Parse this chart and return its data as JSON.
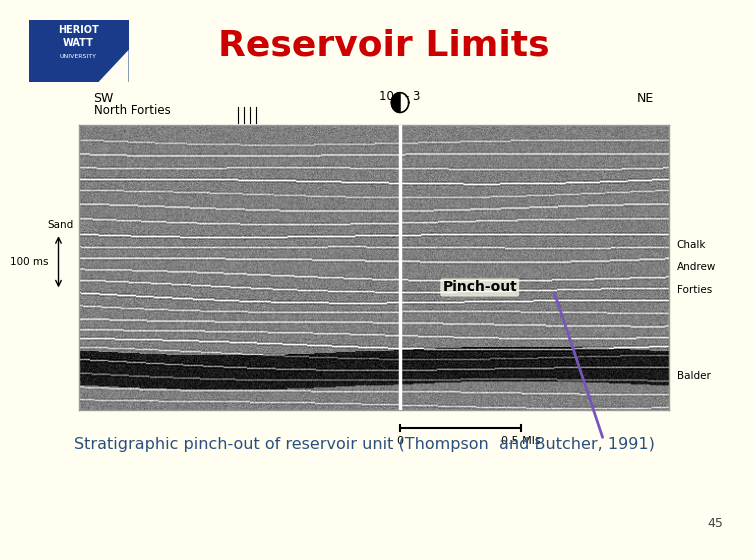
{
  "title": "Reservoir Limits",
  "title_color": "#cc0000",
  "title_fontsize": 26,
  "bg_color": "#fffef0",
  "caption": "Stratigraphic pinch-out of reservoir unit (Thompson  and Butcher, 1991)",
  "caption_color": "#2a5080",
  "caption_fontsize": 11.5,
  "page_number": "45",
  "logo_bg": "#1a3a8a",
  "seismic_border_color": "#aaaaaa",
  "label_sw": "SW",
  "label_ne": "NE",
  "label_well": "10a - 3",
  "label_north_forties": "North Forties",
  "label_100ms": "100 ms",
  "label_sand": "Sand",
  "label_balder": "Balder",
  "label_forties": "Forties",
  "label_andrew": "Andrew",
  "label_chalk": "Chalk",
  "label_pinchout": "Pinch-out",
  "label_scale_0": "0",
  "label_scale_05": "0.5 Mls",
  "pinchout_arrow_color": "#7755bb"
}
